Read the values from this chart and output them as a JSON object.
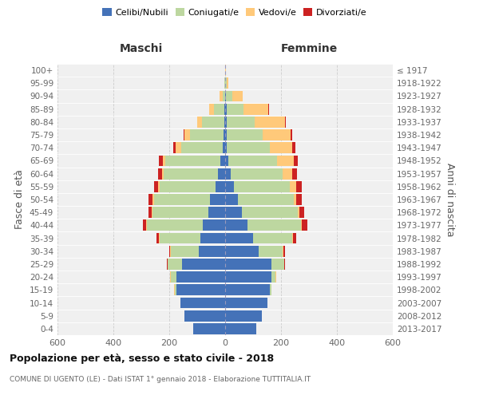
{
  "age_groups": [
    "0-4",
    "5-9",
    "10-14",
    "15-19",
    "20-24",
    "25-29",
    "30-34",
    "35-39",
    "40-44",
    "45-49",
    "50-54",
    "55-59",
    "60-64",
    "65-69",
    "70-74",
    "75-79",
    "80-84",
    "85-89",
    "90-94",
    "95-99",
    "100+"
  ],
  "birth_years": [
    "2013-2017",
    "2008-2012",
    "2003-2007",
    "1998-2002",
    "1993-1997",
    "1988-1992",
    "1983-1987",
    "1978-1982",
    "1973-1977",
    "1968-1972",
    "1963-1967",
    "1958-1962",
    "1953-1957",
    "1948-1952",
    "1943-1947",
    "1938-1942",
    "1933-1937",
    "1928-1932",
    "1923-1927",
    "1918-1922",
    "≤ 1917"
  ],
  "male": {
    "celibi": [
      115,
      145,
      160,
      175,
      175,
      155,
      95,
      90,
      80,
      60,
      55,
      35,
      25,
      18,
      8,
      5,
      3,
      2,
      0,
      0,
      0
    ],
    "coniugati": [
      0,
      0,
      0,
      5,
      20,
      50,
      100,
      145,
      200,
      200,
      200,
      200,
      195,
      195,
      150,
      120,
      80,
      38,
      8,
      2,
      0
    ],
    "vedovi": [
      0,
      0,
      0,
      2,
      2,
      2,
      2,
      2,
      3,
      3,
      5,
      5,
      5,
      10,
      20,
      20,
      18,
      18,
      12,
      2,
      0
    ],
    "divorziati": [
      0,
      0,
      0,
      0,
      0,
      2,
      3,
      8,
      12,
      12,
      15,
      15,
      15,
      15,
      8,
      5,
      0,
      0,
      0,
      0,
      0
    ]
  },
  "female": {
    "nubili": [
      110,
      130,
      150,
      160,
      165,
      165,
      120,
      100,
      80,
      60,
      45,
      30,
      20,
      10,
      5,
      5,
      5,
      5,
      2,
      0,
      0
    ],
    "coniugate": [
      0,
      0,
      0,
      5,
      15,
      45,
      85,
      140,
      190,
      200,
      200,
      200,
      185,
      175,
      155,
      130,
      100,
      60,
      25,
      5,
      0
    ],
    "vedove": [
      0,
      0,
      0,
      0,
      2,
      2,
      3,
      3,
      5,
      5,
      10,
      25,
      35,
      60,
      80,
      100,
      110,
      90,
      35,
      5,
      2
    ],
    "divorziate": [
      0,
      0,
      0,
      0,
      0,
      2,
      5,
      12,
      18,
      18,
      20,
      20,
      18,
      15,
      10,
      5,
      3,
      3,
      2,
      0,
      0
    ]
  },
  "colors": {
    "celibi": "#4472b8",
    "coniugati": "#bdd7a0",
    "vedovi": "#ffc97a",
    "divorziati": "#cc2222"
  },
  "xlim": 600,
  "title": "Popolazione per età, sesso e stato civile - 2018",
  "subtitle": "COMUNE DI UGENTO (LE) - Dati ISTAT 1° gennaio 2018 - Elaborazione TUTTITALIA.IT",
  "ylabel": "Fasce di età",
  "ylabel_right": "Anni di nascita",
  "label_maschi": "Maschi",
  "label_femmine": "Femmine",
  "bg_color": "#f0f0f0",
  "grid_color": "#cccccc"
}
